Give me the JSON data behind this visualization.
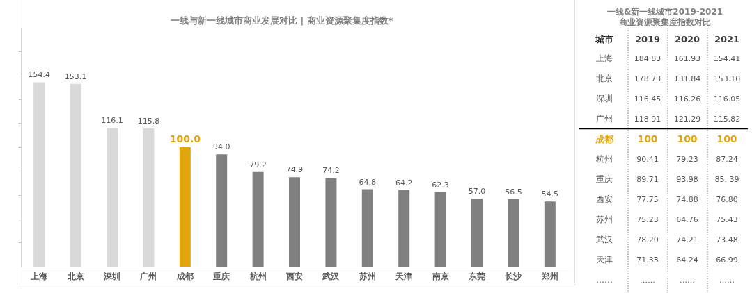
{
  "chart_data": [
    {
      "type": "bar",
      "title": "一线与新一线城市商业发展对比 | 商业资源聚集度指数*",
      "categories": [
        "上海",
        "北京",
        "深圳",
        "广州",
        "成都",
        "重庆",
        "杭州",
        "西安",
        "武汉",
        "苏州",
        "天津",
        "南京",
        "东莞",
        "长沙",
        "郑州"
      ],
      "values": [
        154.4,
        153.1,
        116.1,
        115.8,
        100.0,
        94.0,
        79.2,
        74.9,
        74.2,
        64.8,
        64.2,
        62.3,
        57.0,
        56.5,
        54.5
      ],
      "value_labels": [
        "154.4",
        "153.1",
        "116.1",
        "115.8",
        "100.0",
        "94.0",
        "79.2",
        "74.9",
        "74.2",
        "64.8",
        "64.2",
        "62.3",
        "57.0",
        "56.5",
        "54.5"
      ],
      "colors": [
        "#d9d9d9",
        "#d9d9d9",
        "#d9d9d9",
        "#d9d9d9",
        "#e3a50c",
        "#808080",
        "#808080",
        "#808080",
        "#808080",
        "#808080",
        "#808080",
        "#808080",
        "#808080",
        "#808080",
        "#808080"
      ],
      "ylim": [
        0,
        200
      ],
      "yticks": [
        {
          "value": 20,
          "label": null
        },
        {
          "value": 40,
          "label": null
        },
        {
          "value": 60,
          "label": null
        },
        {
          "value": 80,
          "label": null
        },
        {
          "value": 100,
          "label": null
        },
        {
          "value": 120,
          "label": null
        },
        {
          "value": 140,
          "label": null
        },
        {
          "value": 160,
          "label": null
        },
        {
          "value": 180,
          "label": null
        }
      ],
      "tick_labels": "x",
      "grid": false
    },
    {
      "type": "other",
      "title": "一线&新一线城市2019-2021商业资源聚集度指数对比",
      "ylabel": "城市",
      "categories": [
        "上海",
        "北京",
        "深圳",
        "广州",
        "成都",
        "杭州",
        "重庆",
        "西安",
        "苏州",
        "武汉",
        "天津",
        "……"
      ],
      "colors": [
        "#595959",
        "#595959",
        "#595959",
        "#595959",
        "#e3a50c",
        "#595959",
        "#595959",
        "#595959",
        "#595959",
        "#595959",
        "#595959",
        "#595959"
      ],
      "series": [
        {
          "name": "2019",
          "values": [
            184.83,
            178.73,
            116.45,
            118.91,
            100,
            90.41,
            89.71,
            77.75,
            75.23,
            78.2,
            71.33,
            null
          ],
          "value_labels": [
            "184.83",
            "178.73",
            "116.45",
            "118.91",
            "100",
            "90.41",
            "89.71",
            "77.75",
            "75.23",
            "78.20",
            "71.33",
            "……"
          ]
        },
        {
          "name": "2020",
          "values": [
            161.93,
            131.84,
            116.26,
            121.29,
            100,
            79.23,
            93.98,
            74.88,
            64.76,
            74.21,
            64.24,
            null
          ],
          "value_labels": [
            "161.93",
            "131.84",
            "116.26",
            "121.29",
            "100",
            "79.23",
            "93.98",
            "74.88",
            "64.76",
            "74.21",
            "64.24",
            "……"
          ]
        },
        {
          "name": "2021",
          "values": [
            154.41,
            153.1,
            116.05,
            115.82,
            100,
            87.24,
            85.39,
            76.8,
            75.43,
            73.48,
            66.99,
            null
          ],
          "value_labels": [
            "154.41",
            "153.10",
            "116.05",
            "115.82",
            "100",
            "87.24",
            "85. 39",
            "76.80",
            "75.43",
            "73.48",
            "66.99",
            "……"
          ]
        }
      ]
    }
  ]
}
